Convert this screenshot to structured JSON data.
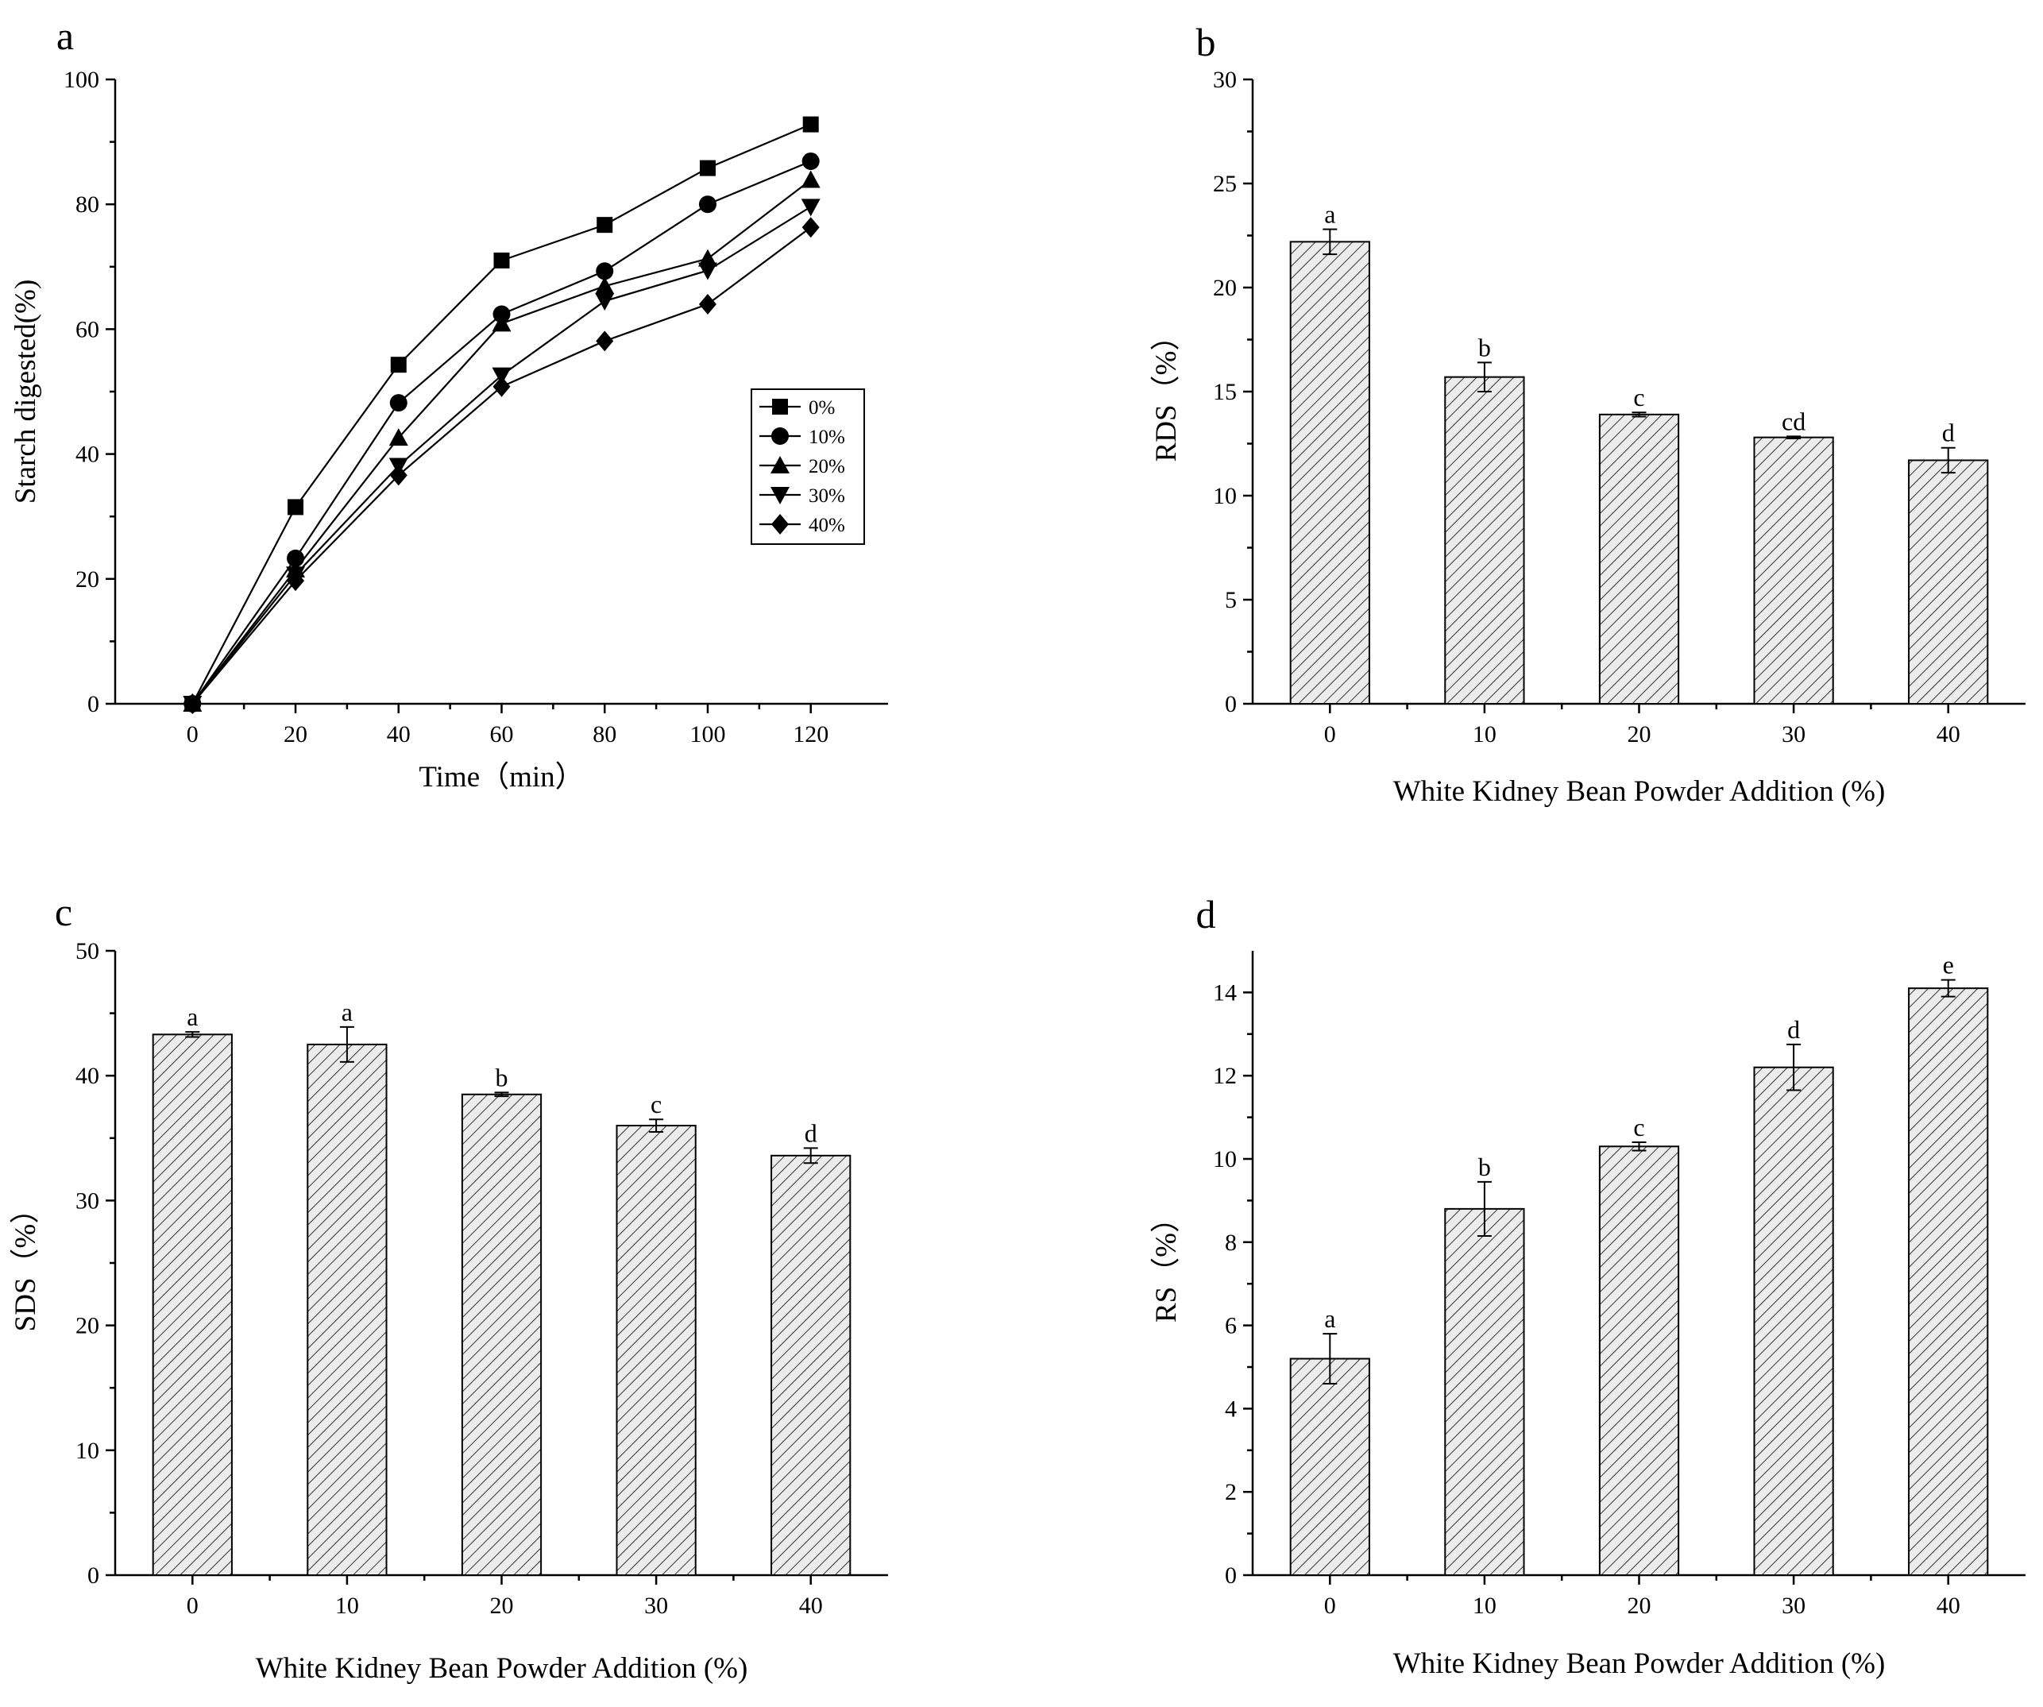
{
  "chart_data": [
    {
      "id": "a",
      "panel_label": "a",
      "type": "line",
      "xlabel": "Time（min）",
      "ylabel": "Starch digested(%)",
      "x": [
        0,
        20,
        40,
        60,
        80,
        100,
        120
      ],
      "xticks": [
        0,
        20,
        40,
        60,
        80,
        100,
        120
      ],
      "xlim": [
        -15,
        135
      ],
      "ylim": [
        0,
        100
      ],
      "yticks": [
        0,
        20,
        40,
        60,
        80,
        100
      ],
      "grid": false,
      "legend_position": "center-right",
      "series": [
        {
          "name": "0%",
          "marker": "square",
          "values": [
            0,
            31.5,
            54.3,
            71.0,
            76.7,
            85.8,
            92.8
          ]
        },
        {
          "name": "10%",
          "marker": "circle",
          "values": [
            0,
            23.3,
            48.2,
            62.4,
            69.3,
            80.0,
            86.9
          ]
        },
        {
          "name": "20%",
          "marker": "triangle-up",
          "values": [
            0,
            21.5,
            42.6,
            60.9,
            66.9,
            71.3,
            83.9
          ]
        },
        {
          "name": "30%",
          "marker": "triangle-down",
          "values": [
            0,
            20.7,
            38.1,
            52.6,
            64.5,
            69.4,
            79.6
          ]
        },
        {
          "name": "40%",
          "marker": "diamond",
          "values": [
            0,
            19.7,
            36.6,
            50.8,
            58.1,
            64.0,
            76.3
          ]
        }
      ]
    },
    {
      "id": "b",
      "panel_label": "b",
      "type": "bar",
      "xlabel": "White Kidney Bean Powder Addition (%)",
      "ylabel": "RDS（%）",
      "categories": [
        "0",
        "10",
        "20",
        "30",
        "40"
      ],
      "values": [
        22.2,
        15.7,
        13.9,
        12.8,
        11.7
      ],
      "errors": [
        0.6,
        0.7,
        0.1,
        0.05,
        0.6
      ],
      "significance": [
        "a",
        "b",
        "c",
        "cd",
        "d"
      ],
      "ylim": [
        0,
        30
      ],
      "yticks": [
        0,
        5,
        10,
        15,
        20,
        25,
        30
      ]
    },
    {
      "id": "c",
      "panel_label": "c",
      "type": "bar",
      "xlabel": "White Kidney Bean Powder Addition (%)",
      "ylabel": "SDS（%）",
      "categories": [
        "0",
        "10",
        "20",
        "30",
        "40"
      ],
      "values": [
        43.3,
        42.5,
        38.5,
        36.0,
        33.6
      ],
      "errors": [
        0.2,
        1.4,
        0.15,
        0.5,
        0.6
      ],
      "significance": [
        "a",
        "a",
        "b",
        "c",
        "d"
      ],
      "ylim": [
        0,
        50
      ],
      "yticks": [
        0,
        10,
        20,
        30,
        40,
        50
      ]
    },
    {
      "id": "d",
      "panel_label": "d",
      "type": "bar",
      "xlabel": "White Kidney Bean Powder Addition (%)",
      "ylabel": "RS（%）",
      "categories": [
        "0",
        "10",
        "20",
        "30",
        "40"
      ],
      "values": [
        5.2,
        8.8,
        10.3,
        12.2,
        14.1
      ],
      "errors": [
        0.6,
        0.65,
        0.1,
        0.55,
        0.2
      ],
      "significance": [
        "a",
        "b",
        "c",
        "d",
        "e"
      ],
      "ylim": [
        0,
        15
      ],
      "yticks": [
        0,
        2,
        4,
        6,
        8,
        10,
        12,
        14
      ]
    }
  ]
}
